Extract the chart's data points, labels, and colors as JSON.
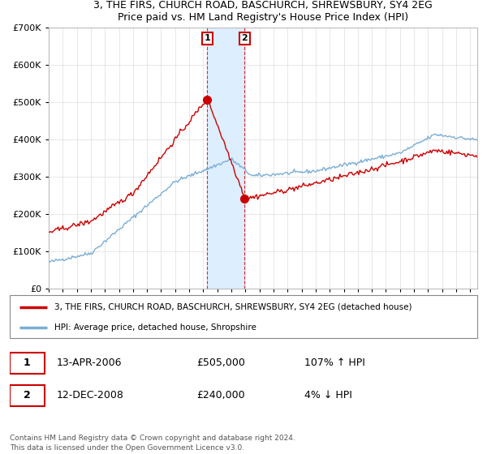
{
  "title": "3, THE FIRS, CHURCH ROAD, BASCHURCH, SHREWSBURY, SY4 2EG",
  "subtitle": "Price paid vs. HM Land Registry's House Price Index (HPI)",
  "legend_line1": "3, THE FIRS, CHURCH ROAD, BASCHURCH, SHREWSBURY, SY4 2EG (detached house)",
  "legend_line2": "HPI: Average price, detached house, Shropshire",
  "transaction1_date": "13-APR-2006",
  "transaction1_price": "£505,000",
  "transaction1_hpi": "107% ↑ HPI",
  "transaction2_date": "12-DEC-2008",
  "transaction2_price": "£240,000",
  "transaction2_hpi": "4% ↓ HPI",
  "footer": "Contains HM Land Registry data © Crown copyright and database right 2024.\nThis data is licensed under the Open Government Licence v3.0.",
  "red_color": "#cc0000",
  "blue_color": "#7aaed6",
  "highlight_color": "#ddeeff",
  "transaction1_x": 2006.28,
  "transaction2_x": 2008.95,
  "ylim_min": 0,
  "ylim_max": 700000,
  "xlim_min": 1995.0,
  "xlim_max": 2025.5
}
